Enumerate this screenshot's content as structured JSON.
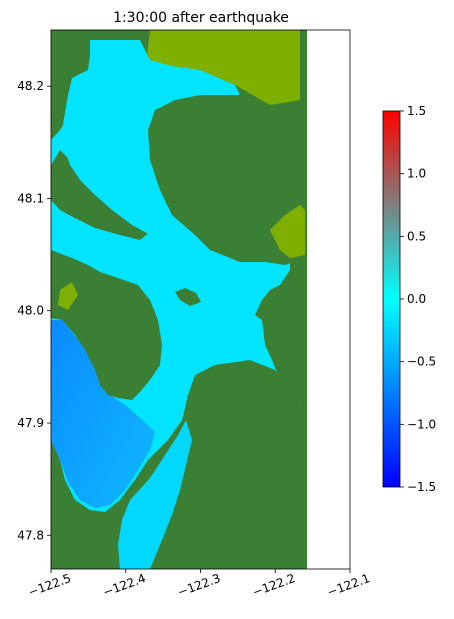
{
  "chart_data": {
    "type": "heatmap",
    "title": "1:30:00 after earthquake",
    "xlabel": "",
    "ylabel": "",
    "xlim": [
      -122.5,
      -122.1
    ],
    "ylim": [
      47.77,
      48.25
    ],
    "x_ticks": [
      -122.5,
      -122.4,
      -122.3,
      -122.2,
      -122.1
    ],
    "x_tick_labels": [
      "−122.5",
      "−122.4",
      "−122.3",
      "−122.2",
      "−122.1"
    ],
    "y_ticks": [
      47.8,
      47.9,
      48.0,
      48.1,
      48.2
    ],
    "y_tick_labels": [
      "47.8",
      "47.9",
      "48.0",
      "48.1",
      "48.2"
    ],
    "data_extent_x": [
      -122.5,
      -122.16
    ],
    "grid": false,
    "colorbar": {
      "min": -1.5,
      "max": 1.5,
      "ticks": [
        -1.5,
        -1.0,
        -0.5,
        0.0,
        0.5,
        1.0,
        1.5
      ],
      "tick_labels": [
        "−1.5",
        "−1.0",
        "−0.5",
        "0.0",
        "0.5",
        "1.0",
        "1.5"
      ],
      "colors": [
        "#0000ff",
        "#00ffff",
        "#ff0000"
      ],
      "placement": "right"
    },
    "colors": {
      "land": "#3a7f34",
      "shore_fringe": "#7fb000",
      "water_near_zero": "#00e6ff",
      "water_negative": "#0a90ff"
    }
  }
}
